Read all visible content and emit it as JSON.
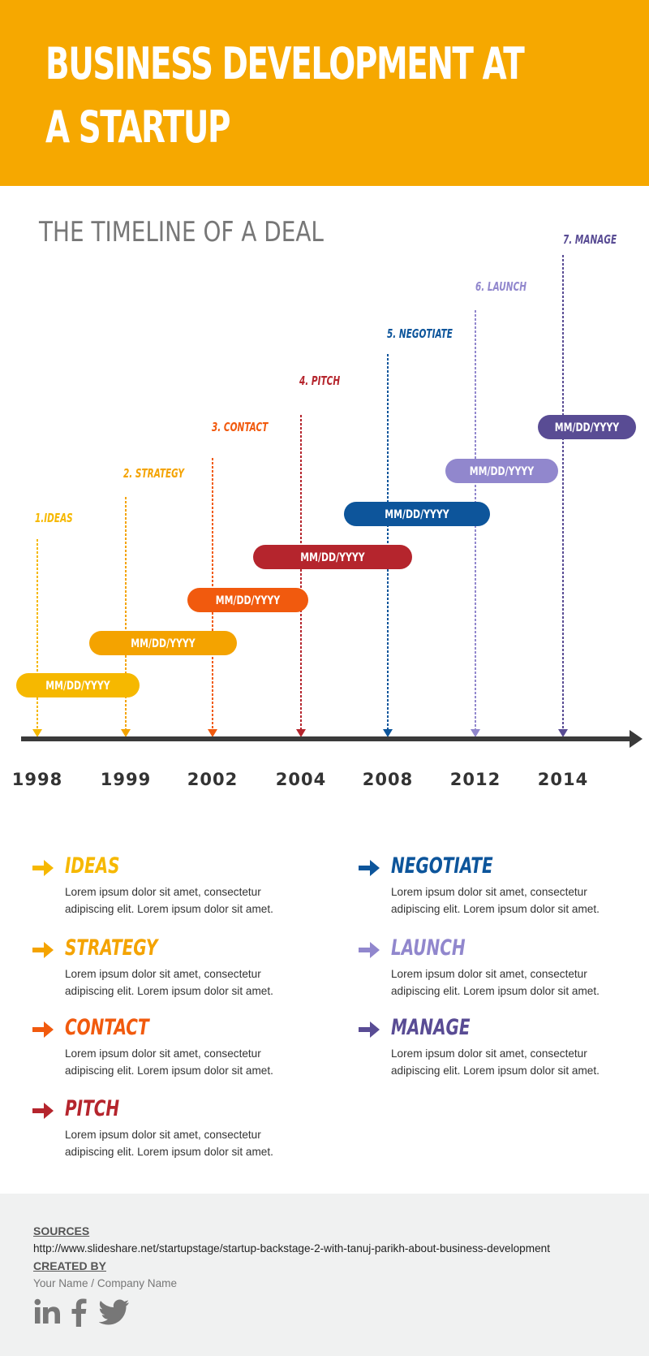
{
  "header": {
    "title_line1": "BUSINESS DEVELOPMENT AT",
    "title_line2": "A STARTUP",
    "background": "#f6a800"
  },
  "subtitle": "THE TIMELINE OF A DEAL",
  "timeline": {
    "stages": [
      {
        "label": "1.IDEAS",
        "year": "1998",
        "date": "MM/DD/YYYY",
        "color": "#f6b800"
      },
      {
        "label": "2. STRATEGY",
        "year": "1999",
        "date": "MM/DD/YYYY",
        "color": "#f4a300"
      },
      {
        "label": "3. CONTACT",
        "year": "2002",
        "date": "MM/DD/YYYY",
        "color": "#f15a0e"
      },
      {
        "label": "4. PITCH",
        "year": "2004",
        "date": "MM/DD/YYYY",
        "color": "#b5252d"
      },
      {
        "label": "5. NEGOTIATE",
        "year": "2008",
        "date": "MM/DD/YYYY",
        "color": "#0d559b"
      },
      {
        "label": "6. LAUNCH",
        "year": "2012",
        "date": "MM/DD/YYYY",
        "color": "#9187cd"
      },
      {
        "label": "7. MANAGE",
        "year": "2014",
        "date": "MM/DD/YYYY",
        "color": "#594c94"
      }
    ],
    "axis_color": "#3a3a3a"
  },
  "legend": {
    "items": [
      {
        "title": "IDEAS",
        "desc": "Lorem ipsum dolor sit amet, consectetur adipiscing elit. Lorem ipsum dolor sit amet.",
        "color": "#f6b800"
      },
      {
        "title": "STRATEGY",
        "desc": "Lorem ipsum dolor sit amet, consectetur adipiscing elit. Lorem ipsum dolor sit amet.",
        "color": "#f4a300"
      },
      {
        "title": "CONTACT",
        "desc": "Lorem ipsum dolor sit amet, consectetur adipiscing elit. Lorem ipsum dolor sit amet.",
        "color": "#f15a0e"
      },
      {
        "title": "PITCH",
        "desc": "Lorem ipsum dolor sit amet, consectetur adipiscing elit. Lorem ipsum dolor sit amet.",
        "color": "#b5252d"
      },
      {
        "title": "NEGOTIATE",
        "desc": "Lorem ipsum dolor sit amet, consectetur adipiscing elit. Lorem ipsum dolor sit amet.",
        "color": "#0d559b"
      },
      {
        "title": "LAUNCH",
        "desc": "Lorem ipsum dolor sit amet, consectetur adipiscing elit. Lorem ipsum dolor sit amet.",
        "color": "#9187cd"
      },
      {
        "title": "MANAGE",
        "desc": "Lorem ipsum dolor sit amet, consectetur adipiscing elit. Lorem ipsum dolor sit amet.",
        "color": "#594c94"
      }
    ]
  },
  "footer": {
    "sources_label": "SOURCES",
    "sources_url": "http://www.slideshare.net/startupstage/startup-backstage-2-with-tanuj-parikh-about-business-development",
    "created_label": "CREATED BY",
    "created_name": "Your Name / Company Name",
    "social_icons": [
      "linkedin-icon",
      "facebook-icon",
      "twitter-icon"
    ],
    "icon_color": "#777777"
  }
}
